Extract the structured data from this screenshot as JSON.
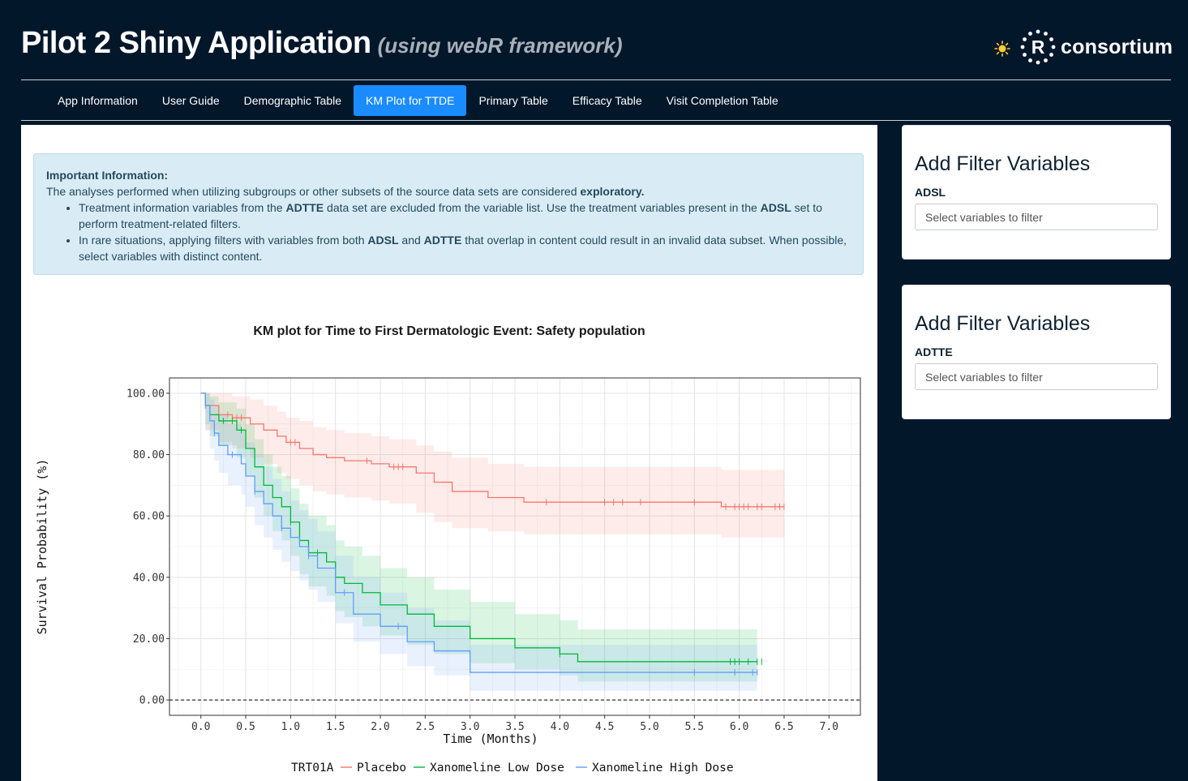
{
  "header": {
    "title": "Pilot 2 Shiny Application",
    "subtitle": "(using webR framework)",
    "theme_icon": "sun-icon",
    "logo_text": "consortium"
  },
  "nav": {
    "tabs": [
      {
        "label": "App Information"
      },
      {
        "label": "User Guide"
      },
      {
        "label": "Demographic Table"
      },
      {
        "label": "KM Plot for TTDE",
        "active": true
      },
      {
        "label": "Primary Table"
      },
      {
        "label": "Efficacy Table"
      },
      {
        "label": "Visit Completion Table"
      }
    ]
  },
  "info": {
    "heading": "Important Information:",
    "line1_pre": "The analyses performed when utilizing subgroups or other subsets of the source data sets are considered ",
    "line1_bold": "exploratory.",
    "b1_a": "Treatment information variables from the ",
    "b1_b": "ADTTE",
    "b1_c": " data set are excluded from the variable list. Use the treatment variables present in the ",
    "b1_d": "ADSL",
    "b1_e": " set to perform treatment-related filters.",
    "b2_a": "In rare situations, applying filters with variables from both ",
    "b2_b": "ADSL",
    "b2_c": " and ",
    "b2_d": "ADTTE",
    "b2_e": " that overlap in content could result in an invalid data subset. When possible, select variables with distinct content."
  },
  "filters": [
    {
      "title": "Add Filter Variables",
      "dataset": "ADSL",
      "placeholder": "Select variables to filter"
    },
    {
      "title": "Add Filter Variables",
      "dataset": "ADTTE",
      "placeholder": "Select variables to filter"
    }
  ],
  "colors": {
    "placebo": "#f8766d",
    "low": "#00ba38",
    "high": "#619cff"
  },
  "chart_data": {
    "type": "line",
    "title": "KM plot for Time to First Dermatologic Event: Safety population",
    "xlabel": "Time (Months)",
    "ylabel": "Survival Probability (%)",
    "xlim": [
      -0.35,
      7.35
    ],
    "ylim": [
      -5,
      105
    ],
    "xticks": [
      "0.0",
      "0.5",
      "1.0",
      "1.5",
      "2.0",
      "2.5",
      "3.0",
      "3.5",
      "4.0",
      "4.5",
      "5.0",
      "5.5",
      "6.0",
      "6.5",
      "7.0"
    ],
    "yticks": [
      "0.00",
      "20.00",
      "40.00",
      "60.00",
      "80.00",
      "100.00"
    ],
    "legend_title": "TRT01A",
    "legend_position": "bottom",
    "reference_line_y": 0,
    "series": [
      {
        "name": "Placebo",
        "color": "#f8766d",
        "x": [
          0,
          0.05,
          0.2,
          0.35,
          0.55,
          0.7,
          0.85,
          0.95,
          1.1,
          1.25,
          1.4,
          1.6,
          1.9,
          2.1,
          2.4,
          2.6,
          2.8,
          3.2,
          3.6,
          5.8,
          6.5
        ],
        "y": [
          100,
          96,
          93,
          92,
          90,
          88,
          86,
          84,
          82,
          80,
          79,
          78,
          77,
          76,
          74,
          71,
          68,
          66,
          64.5,
          63,
          63
        ],
        "lower": [
          100,
          88,
          84,
          82,
          79,
          77,
          74,
          72,
          70,
          68,
          67,
          66,
          65,
          64,
          61,
          58,
          56,
          55,
          54,
          53,
          53
        ],
        "upper": [
          100,
          100,
          100,
          99,
          98,
          96,
          94,
          92,
          91,
          89,
          88,
          87,
          86,
          85,
          83,
          81,
          79,
          77,
          76,
          75,
          75
        ],
        "censor": [
          0.3,
          0.4,
          0.45,
          1.0,
          1.05,
          1.85,
          2.15,
          2.2,
          2.25,
          3.85,
          4.5,
          4.6,
          4.7,
          4.9,
          5.5,
          5.85,
          5.95,
          6.0,
          6.05,
          6.1,
          6.2,
          6.25,
          6.4,
          6.45,
          6.5
        ]
      },
      {
        "name": "Xanomeline Low Dose",
        "color": "#00ba38",
        "x": [
          0,
          0.05,
          0.1,
          0.2,
          0.4,
          0.5,
          0.6,
          0.7,
          0.8,
          0.9,
          1.0,
          1.1,
          1.2,
          1.4,
          1.5,
          1.6,
          1.8,
          2.0,
          2.3,
          2.6,
          3.0,
          3.5,
          4.0,
          4.2,
          6.2
        ],
        "y": [
          100,
          96,
          93,
          91,
          88,
          82,
          76,
          70,
          66,
          63,
          58,
          52,
          48,
          45,
          40,
          38,
          35,
          31,
          28,
          24,
          20,
          17,
          15,
          12.5,
          12.5
        ],
        "lower": [
          100,
          90,
          86,
          83,
          79,
          73,
          66,
          60,
          55,
          52,
          47,
          41,
          37,
          34,
          29,
          27,
          24,
          21,
          18,
          15,
          12,
          10,
          8,
          6,
          6
        ],
        "upper": [
          100,
          100,
          99,
          97,
          95,
          90,
          85,
          80,
          76,
          73,
          69,
          64,
          60,
          57,
          52,
          50,
          47,
          43,
          40,
          36,
          32,
          28,
          26,
          23,
          23
        ],
        "censor": [
          0.25,
          0.35,
          0.45,
          1.0,
          1.3,
          4.0,
          5.9,
          5.95,
          6.0,
          6.1,
          6.2,
          6.25
        ]
      },
      {
        "name": "Xanomeline High Dose",
        "color": "#619cff",
        "x": [
          0,
          0.05,
          0.1,
          0.15,
          0.2,
          0.3,
          0.45,
          0.5,
          0.6,
          0.7,
          0.8,
          0.9,
          1.0,
          1.1,
          1.2,
          1.3,
          1.5,
          1.7,
          2.0,
          2.3,
          2.6,
          3.0,
          6.2
        ],
        "y": [
          100,
          96,
          91,
          87,
          83,
          80,
          77,
          73,
          68,
          64,
          60,
          56,
          53,
          50,
          47,
          43,
          35,
          28,
          24,
          19,
          16,
          9,
          9
        ],
        "lower": [
          100,
          88,
          82,
          78,
          74,
          70,
          67,
          63,
          57,
          53,
          49,
          45,
          42,
          39,
          36,
          32,
          25,
          19,
          15,
          11,
          8,
          3,
          3
        ],
        "upper": [
          100,
          100,
          98,
          96,
          93,
          90,
          88,
          84,
          80,
          76,
          72,
          68,
          65,
          62,
          59,
          55,
          47,
          40,
          35,
          30,
          26,
          18,
          18
        ],
        "censor": [
          0.05,
          0.15,
          0.35,
          0.6,
          0.9,
          1.2,
          1.6,
          2.2,
          5.5,
          5.95,
          6.15,
          6.2
        ]
      }
    ]
  }
}
